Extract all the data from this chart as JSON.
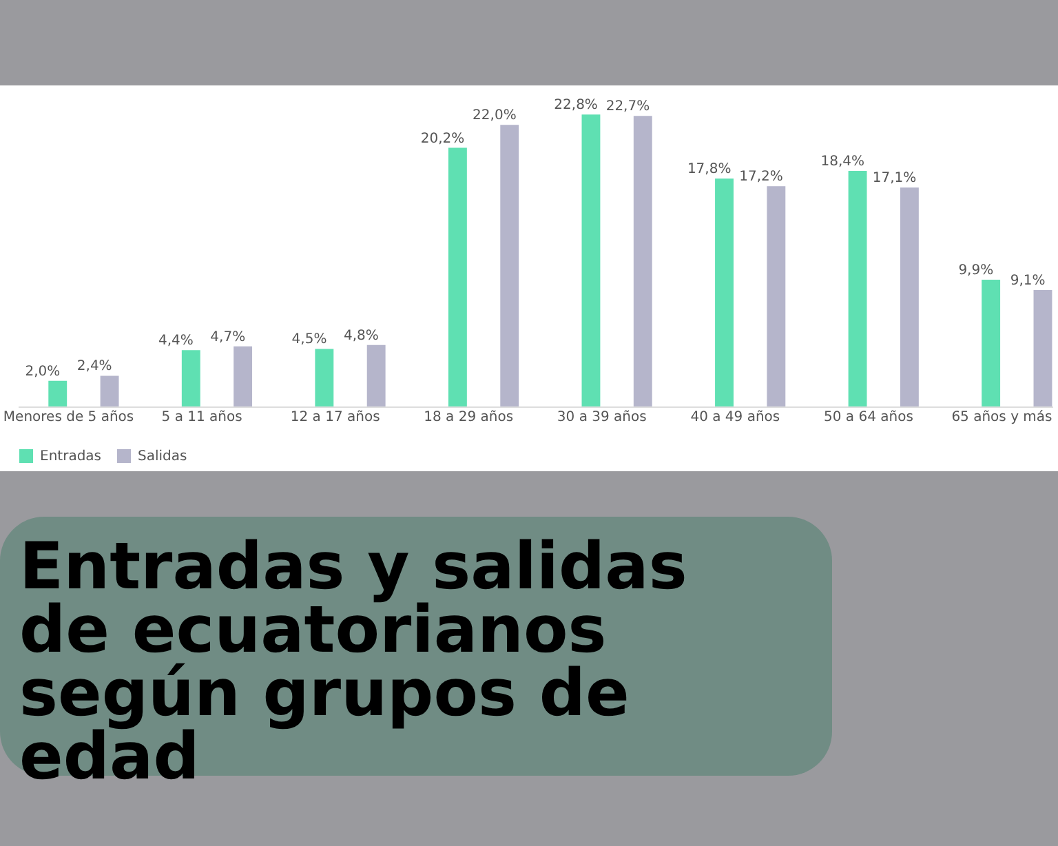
{
  "chart_data": {
    "type": "bar",
    "title": "Entradas y salidas de ecuatorianos según grupos de edad",
    "categories": [
      "Menores de 5 años",
      "5 a 11 años",
      "12 a 17 años",
      "18 a 29 años",
      "30 a 39 años",
      "40 a 49 años",
      "50 a 64 años",
      "65 años y más"
    ],
    "series": [
      {
        "name": "Entradas",
        "color": "#5fe0b2",
        "values": [
          2.0,
          4.4,
          4.5,
          20.2,
          22.8,
          17.8,
          18.4,
          9.9
        ],
        "value_labels": [
          "2,0%",
          "4,4%",
          "4,5%",
          "20,2%",
          "22,8%",
          "17,8%",
          "18,4%",
          "9,9%"
        ]
      },
      {
        "name": "Salidas",
        "color": "#b5b5cb",
        "values": [
          2.4,
          4.7,
          4.8,
          22.0,
          22.7,
          17.2,
          17.1,
          9.1
        ],
        "value_labels": [
          "2,4%",
          "4,7%",
          "4,8%",
          "22,0%",
          "22,7%",
          "17,2%",
          "17,1%",
          "9,1%"
        ]
      }
    ],
    "legend": "bottom",
    "grid": false
  }
}
